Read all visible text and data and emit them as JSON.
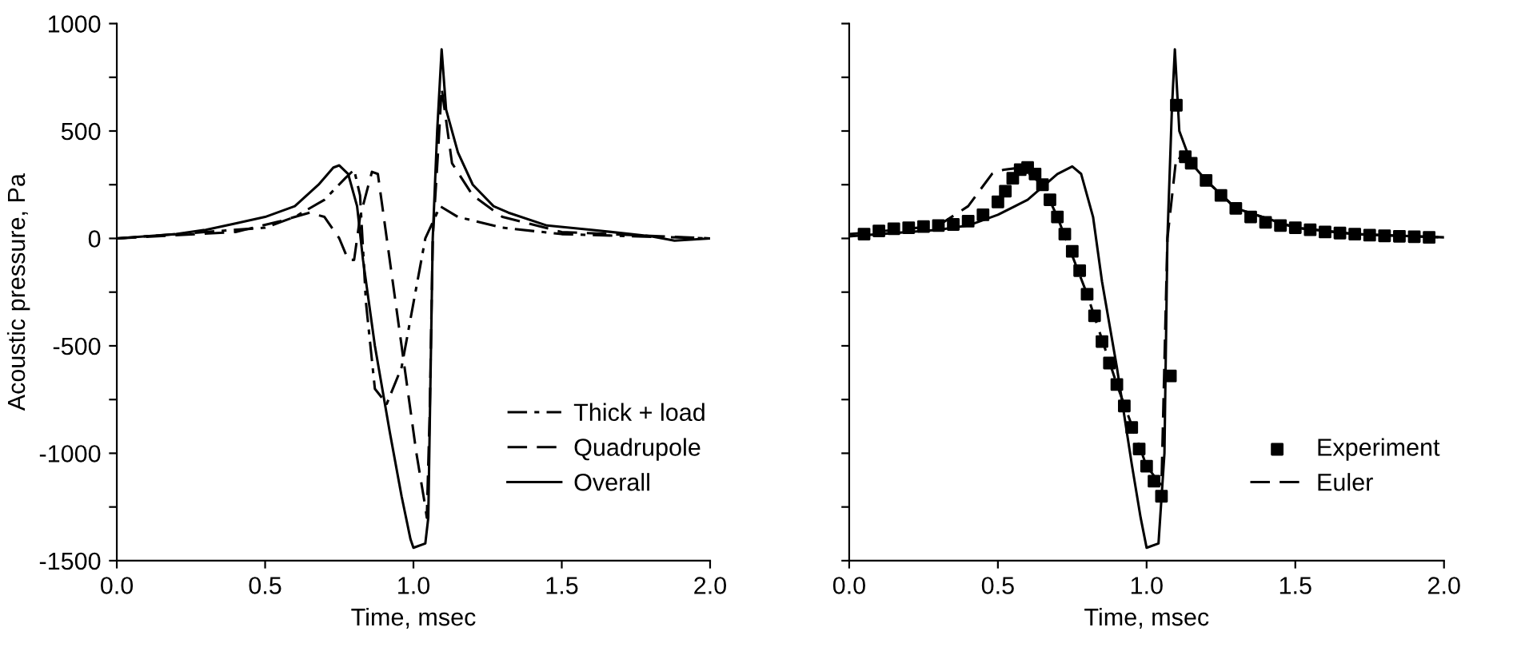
{
  "chart_data": [
    {
      "type": "line",
      "xlabel": "Time, msec",
      "ylabel": "Acoustic pressure, Pa",
      "xlim": [
        0,
        2
      ],
      "ylim": [
        -1500,
        1000
      ],
      "xticks": [
        {
          "value": 0,
          "label": "0.0"
        },
        {
          "value": 0.5,
          "label": "0.5"
        },
        {
          "value": 1,
          "label": "1.0"
        },
        {
          "value": 1.5,
          "label": "1.5"
        },
        {
          "value": 2,
          "label": "2.0"
        }
      ],
      "yticks": [
        -1500,
        {
          "value": -1250,
          "label": null
        },
        -1000,
        {
          "value": -750,
          "label": null
        },
        -500,
        {
          "value": -250,
          "label": null
        },
        0,
        {
          "value": 250,
          "label": null
        },
        500,
        {
          "value": 750,
          "label": null
        },
        1000
      ],
      "grid": false,
      "legend": "bottom right",
      "series": [
        {
          "name": "Thick + load",
          "color": "#000000",
          "line_style": "dashdot",
          "x": [
            0,
            0.3,
            0.5,
            0.6,
            0.7,
            0.77,
            0.8,
            0.82,
            0.84,
            0.87,
            0.91,
            0.96,
            1.0,
            1.04,
            1.09,
            1.15,
            1.3,
            1.5,
            2.0
          ],
          "values": [
            0,
            30,
            50,
            100,
            180,
            280,
            320,
            200,
            -300,
            -700,
            -770,
            -600,
            -300,
            0,
            150,
            100,
            50,
            20,
            0
          ]
        },
        {
          "name": "Quadrupole",
          "color": "#000000",
          "line_style": "dashed",
          "x": [
            0,
            0.4,
            0.55,
            0.65,
            0.7,
            0.75,
            0.78,
            0.8,
            0.82,
            0.86,
            0.88,
            0.9,
            0.94,
            0.98,
            1.01,
            1.04,
            1.045,
            1.055,
            1.065,
            1.085,
            1.095,
            1.13,
            1.2,
            1.3,
            1.5,
            2.0
          ],
          "values": [
            0,
            30,
            80,
            120,
            100,
            0,
            -100,
            -100,
            100,
            310,
            300,
            100,
            -300,
            -700,
            -1000,
            -1250,
            -1300,
            -800,
            0,
            450,
            700,
            350,
            200,
            100,
            30,
            0
          ]
        },
        {
          "name": "Overall",
          "color": "#000000",
          "line_style": "solid",
          "x": [
            0,
            0.2,
            0.3,
            0.4,
            0.5,
            0.6,
            0.68,
            0.73,
            0.75,
            0.78,
            0.81,
            0.83,
            0.87,
            0.92,
            0.96,
            0.99,
            1.0,
            1.04,
            1.05,
            1.065,
            1.08,
            1.095,
            1.11,
            1.15,
            1.2,
            1.27,
            1.32,
            1.45,
            1.6,
            1.8,
            1.88,
            2.0
          ],
          "values": [
            0,
            20,
            40,
            70,
            100,
            150,
            250,
            330,
            340,
            300,
            150,
            -100,
            -500,
            -900,
            -1200,
            -1400,
            -1440,
            -1420,
            -1300,
            0,
            500,
            880,
            600,
            400,
            250,
            150,
            120,
            60,
            40,
            10,
            -10,
            0
          ]
        }
      ]
    },
    {
      "type": "line",
      "xlabel": "Time, msec",
      "xlim": [
        0,
        2
      ],
      "ylim": [
        -1500,
        1000
      ],
      "xticks": [
        {
          "value": 0,
          "label": "0.0"
        },
        {
          "value": 0.5,
          "label": "0.5"
        },
        {
          "value": 1,
          "label": "1.0"
        },
        {
          "value": 1.5,
          "label": "1.5"
        },
        {
          "value": 2,
          "label": "2.0"
        }
      ],
      "yticks": [
        -1500,
        {
          "value": -1250,
          "label": null
        },
        -1000,
        {
          "value": -750,
          "label": null
        },
        -500,
        {
          "value": -250,
          "label": null
        },
        0,
        {
          "value": 250,
          "label": null
        },
        500,
        {
          "value": 750,
          "label": null
        },
        1000
      ],
      "tick_labels": "x",
      "grid": false,
      "legend": "bottom right",
      "series": [
        {
          "name": "Experiment",
          "type": "scatter",
          "marker": "square",
          "color": "#000000",
          "x": [
            0.05,
            0.1,
            0.15,
            0.2,
            0.25,
            0.3,
            0.35,
            0.4,
            0.45,
            0.5,
            0.525,
            0.55,
            0.575,
            0.6,
            0.625,
            0.65,
            0.675,
            0.7,
            0.725,
            0.75,
            0.775,
            0.8,
            0.825,
            0.85,
            0.875,
            0.9,
            0.925,
            0.95,
            0.975,
            1.0,
            1.025,
            1.05,
            1.08,
            1.1,
            1.13,
            1.15,
            1.2,
            1.25,
            1.3,
            1.35,
            1.4,
            1.45,
            1.5,
            1.55,
            1.6,
            1.65,
            1.7,
            1.75,
            1.8,
            1.85,
            1.9,
            1.95
          ],
          "values": [
            20,
            35,
            45,
            50,
            55,
            60,
            65,
            80,
            110,
            170,
            220,
            280,
            320,
            330,
            300,
            250,
            180,
            100,
            20,
            -60,
            -150,
            -260,
            -360,
            -480,
            -580,
            -680,
            -780,
            -880,
            -980,
            -1060,
            -1130,
            -1200,
            -640,
            620,
            380,
            350,
            270,
            200,
            140,
            100,
            75,
            60,
            50,
            40,
            30,
            25,
            20,
            15,
            12,
            10,
            8,
            5
          ]
        },
        {
          "name": "Euler",
          "type": "line",
          "color": "#000000",
          "line_style": "dashed",
          "x": [
            0,
            0.2,
            0.3,
            0.4,
            0.48,
            0.52,
            0.58,
            0.65,
            0.7,
            0.8,
            0.9,
            1.0,
            1.05,
            1.07,
            1.1,
            1.15,
            1.2,
            1.3,
            1.5,
            1.7,
            2.0
          ],
          "values": [
            20,
            45,
            60,
            150,
            300,
            320,
            330,
            250,
            100,
            -260,
            -680,
            -1060,
            -1150,
            0,
            380,
            350,
            270,
            140,
            50,
            20,
            5
          ]
        },
        {
          "type": "line",
          "color": "#000000",
          "line_style": "solid",
          "x": [
            0,
            0.3,
            0.4,
            0.5,
            0.6,
            0.7,
            0.75,
            0.78,
            0.82,
            0.85,
            0.9,
            0.95,
            0.98,
            1.0,
            1.04,
            1.06,
            1.07,
            1.085,
            1.095,
            1.11,
            1.15,
            1.2,
            1.3,
            1.5,
            1.7,
            2.0
          ],
          "values": [
            10,
            40,
            60,
            110,
            180,
            300,
            335,
            300,
            100,
            -200,
            -600,
            -1050,
            -1300,
            -1440,
            -1420,
            -1000,
            0,
            600,
            880,
            500,
            350,
            270,
            140,
            50,
            20,
            5
          ]
        }
      ]
    }
  ]
}
